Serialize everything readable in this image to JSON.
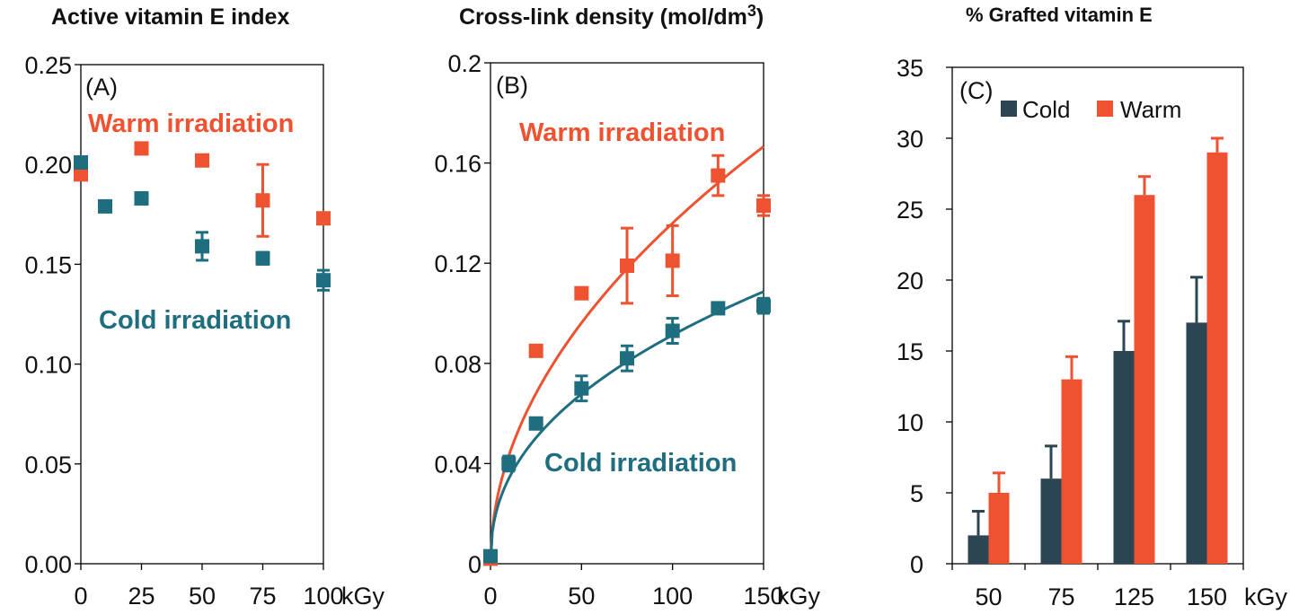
{
  "colors": {
    "warm": "#EE5230",
    "cold": "#1E6E80",
    "cold_bar": "#2B4553",
    "axis": "#000000"
  },
  "chart_data": [
    {
      "id": "A",
      "type": "scatter",
      "title": "Active vitamin E index",
      "panel_label": "(A)",
      "xlabel_unit": "kGy",
      "xlim": [
        0,
        100
      ],
      "ylim": [
        0.0,
        0.25
      ],
      "xticks": [
        0,
        25,
        50,
        75,
        100
      ],
      "yticks": [
        0.0,
        0.05,
        0.1,
        0.15,
        0.2,
        0.25
      ],
      "ytick_labels": [
        "0.00",
        "0.05",
        "0.10",
        "0.15",
        "0.20",
        "0.25"
      ],
      "annotations": {
        "warm": "Warm irradiation",
        "cold": "Cold irradiation"
      },
      "series": [
        {
          "name": "Warm irradiation",
          "color_key": "warm",
          "x": [
            0,
            25,
            50,
            75,
            100
          ],
          "y": [
            0.195,
            0.208,
            0.202,
            0.182,
            0.173
          ],
          "err": [
            0,
            0,
            0,
            0.018,
            0
          ]
        },
        {
          "name": "Cold irradiation",
          "color_key": "cold",
          "x": [
            0,
            10,
            25,
            50,
            75,
            100
          ],
          "y": [
            0.201,
            0.179,
            0.183,
            0.159,
            0.153,
            0.142
          ],
          "err": [
            0,
            0,
            0,
            0.007,
            0.003,
            0.005
          ]
        }
      ]
    },
    {
      "id": "B",
      "type": "scatter",
      "title": "Cross-link density (mol/dm",
      "title_sup": "3",
      "title_end": ")",
      "panel_label": "(B)",
      "xlabel_unit": "kGy",
      "xlim": [
        0,
        150
      ],
      "ylim": [
        0,
        0.2
      ],
      "xticks": [
        0,
        50,
        100,
        150
      ],
      "yticks": [
        0,
        0.04,
        0.08,
        0.12,
        0.16,
        0.2
      ],
      "ytick_labels": [
        "0",
        "0.04",
        "0.08",
        "0.12",
        "0.16",
        "0.2"
      ],
      "annotations": {
        "warm": "Warm irradiation",
        "cold": "Cold irradiation"
      },
      "series": [
        {
          "name": "Warm irradiation",
          "color_key": "warm",
          "x": [
            0,
            25,
            50,
            75,
            100,
            125,
            150
          ],
          "y": [
            0.002,
            0.085,
            0.108,
            0.119,
            0.121,
            0.155,
            0.143
          ],
          "err": [
            0,
            0,
            0,
            0.015,
            0.014,
            0.008,
            0.004
          ],
          "fit": {
            "a": 0.0136,
            "p": 0.5
          }
        },
        {
          "name": "Cold irradiation",
          "color_key": "cold",
          "x": [
            0,
            10,
            25,
            50,
            75,
            100,
            125,
            150
          ],
          "y": [
            0.003,
            0.04,
            0.056,
            0.07,
            0.082,
            0.093,
            0.102,
            0.103
          ],
          "err": [
            0,
            0.003,
            0.002,
            0.005,
            0.005,
            0.005,
            0.002,
            0.003
          ],
          "fit": {
            "a": 0.0126,
            "p": 0.43
          }
        }
      ]
    },
    {
      "id": "C",
      "type": "bar",
      "title": "% Grafted vitamin E",
      "panel_label": "(C)",
      "xlabel_unit": "kGy",
      "categories": [
        "50",
        "75",
        "125",
        "150"
      ],
      "ylim": [
        0,
        35
      ],
      "yticks": [
        0,
        5,
        10,
        15,
        20,
        25,
        30,
        35
      ],
      "ytick_labels": [
        "0",
        "5",
        "10",
        "15",
        "20",
        "25",
        "30",
        "35"
      ],
      "legend": {
        "cold": "Cold",
        "warm": "Warm"
      },
      "series": [
        {
          "name": "Cold",
          "color_key": "cold_bar",
          "values": [
            2,
            6,
            15,
            17
          ],
          "err": [
            1.7,
            2.3,
            2.1,
            3.2
          ]
        },
        {
          "name": "Warm",
          "color_key": "warm",
          "values": [
            5,
            13,
            26,
            29
          ],
          "err": [
            1.4,
            1.6,
            1.3,
            1.0
          ]
        }
      ]
    }
  ]
}
